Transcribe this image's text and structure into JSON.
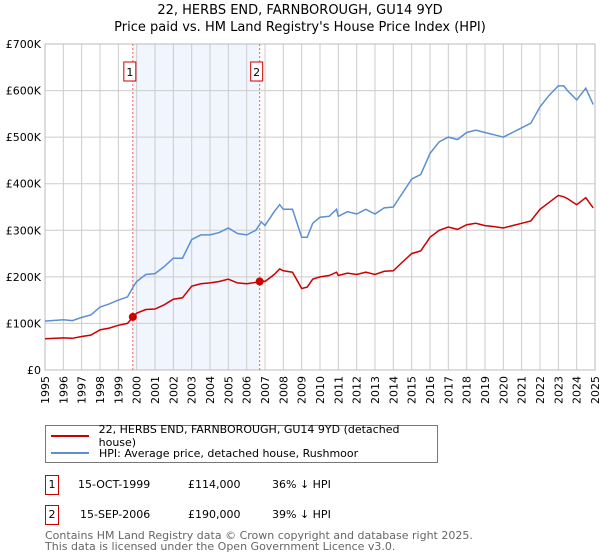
{
  "chart_data": {
    "type": "line",
    "title": "22, HERBS END, FARNBOROUGH, GU14 9YD",
    "subtitle": "Price paid vs. HM Land Registry's House Price Index (HPI)",
    "xlabel": "",
    "ylabel": "",
    "xlim": [
      1995,
      2025
    ],
    "ylim": [
      0,
      700000
    ],
    "y_ticks": [
      {
        "v": 0,
        "label": "£0"
      },
      {
        "v": 100000,
        "label": "£100K"
      },
      {
        "v": 200000,
        "label": "£200K"
      },
      {
        "v": 300000,
        "label": "£300K"
      },
      {
        "v": 400000,
        "label": "£400K"
      },
      {
        "v": 500000,
        "label": "£500K"
      },
      {
        "v": 600000,
        "label": "£600K"
      },
      {
        "v": 700000,
        "label": "£700K"
      }
    ],
    "x_ticks": [
      "1995",
      "1996",
      "1997",
      "1998",
      "1999",
      "2000",
      "2001",
      "2002",
      "2003",
      "2004",
      "2005",
      "2006",
      "2007",
      "2008",
      "2009",
      "2010",
      "2011",
      "2012",
      "2013",
      "2014",
      "2015",
      "2016",
      "2017",
      "2018",
      "2019",
      "2020",
      "2021",
      "2022",
      "2023",
      "2024",
      "2025"
    ],
    "grid": true,
    "x": [
      1995,
      1996,
      1996.5,
      1997,
      1997.5,
      1998,
      1998.5,
      1999,
      1999.5,
      1999.8,
      2000,
      2000.5,
      2001,
      2001.5,
      2002,
      2002.5,
      2003,
      2003.5,
      2004,
      2004.5,
      2005,
      2005.5,
      2006,
      2006.5,
      2006.8,
      2007,
      2007.5,
      2007.8,
      2008,
      2008.5,
      2009,
      2009.3,
      2009.6,
      2010,
      2010.5,
      2010.9,
      2011,
      2011.5,
      2012,
      2012.5,
      2013,
      2013.5,
      2014,
      2014.5,
      2015,
      2015.5,
      2016,
      2016.5,
      2017,
      2017.5,
      2018,
      2018.5,
      2019,
      2019.5,
      2020,
      2020.5,
      2021,
      2021.5,
      2022,
      2022.5,
      2023,
      2023.3,
      2023.5,
      2024,
      2024.5,
      2024.9
    ],
    "series": [
      {
        "name": "22, HERBS END, FARNBOROUGH, GU14 9YD (detached house)",
        "color": "#cc0000",
        "values_k": [
          67,
          69,
          68,
          72,
          75,
          86,
          90,
          96,
          100,
          114,
          122,
          130,
          131,
          140,
          152,
          155,
          180,
          185,
          187,
          190,
          195,
          187,
          185,
          188,
          192,
          190,
          205,
          217,
          213,
          210,
          175,
          178,
          195,
          200,
          203,
          210,
          203,
          208,
          205,
          210,
          205,
          212,
          213,
          232,
          250,
          256,
          285,
          300,
          307,
          302,
          312,
          315,
          310,
          308,
          305,
          310,
          315,
          320,
          345,
          360,
          375,
          372,
          368,
          355,
          370,
          348
        ]
      },
      {
        "name": "HPI: Average price, detached house, Rushmoor",
        "color": "#5b8fd0",
        "values_k": [
          105,
          108,
          106,
          113,
          118,
          135,
          142,
          150,
          157,
          178,
          190,
          205,
          207,
          222,
          240,
          240,
          280,
          290,
          290,
          295,
          305,
          293,
          290,
          300,
          318,
          310,
          340,
          355,
          345,
          345,
          285,
          285,
          315,
          328,
          330,
          345,
          330,
          340,
          335,
          345,
          335,
          348,
          350,
          380,
          410,
          420,
          465,
          490,
          500,
          495,
          510,
          515,
          510,
          505,
          500,
          510,
          520,
          530,
          565,
          590,
          610,
          610,
          600,
          580,
          605,
          570
        ]
      }
    ],
    "sales": [
      {
        "id": "1",
        "date": "15-OCT-1999",
        "x": 1999.79,
        "price": 114000,
        "price_label": "£114,000",
        "hpi_note": "36% ↓ HPI"
      },
      {
        "id": "2",
        "date": "15-SEP-2006",
        "x": 2006.71,
        "price": 190000,
        "price_label": "£190,000",
        "hpi_note": "39% ↓ HPI"
      }
    ],
    "shaded_range": [
      1999.79,
      2006.71
    ],
    "legend_placement": "below"
  },
  "footer": {
    "line1": "Contains HM Land Registry data © Crown copyright and database right 2025.",
    "line2": "This data is licensed under the Open Government Licence v3.0."
  }
}
